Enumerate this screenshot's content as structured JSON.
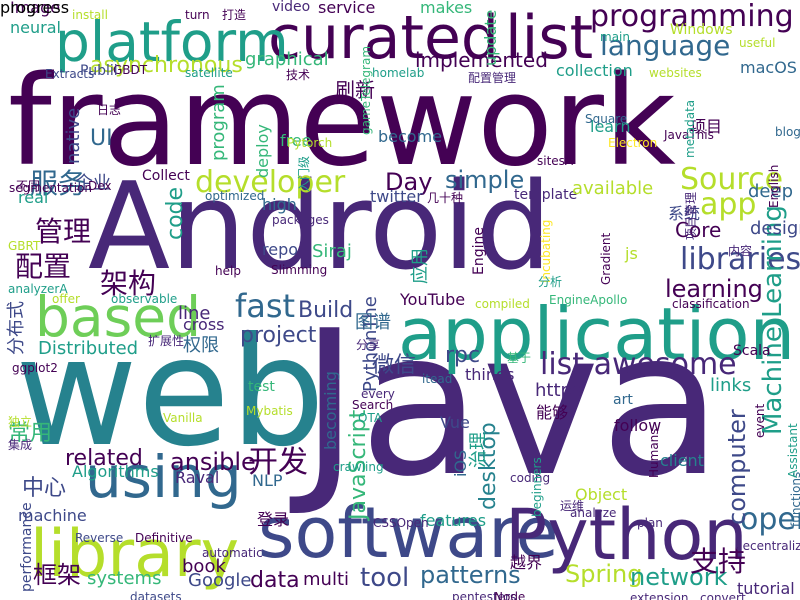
{
  "palette": {
    "dark_purple": "#440154",
    "indigo": "#482878",
    "blue_purple": "#3e4989",
    "steel_blue": "#31688e",
    "teal": "#26828e",
    "sea_green": "#1f9e89",
    "green": "#35b779",
    "light_green": "#6ece58",
    "lime": "#b5de2b",
    "yellow": "#fde725"
  },
  "words": [
    {
      "text": "framework",
      "color": "dark_purple",
      "vertical": false
    },
    {
      "text": "Android",
      "color": "indigo",
      "vertical": false
    },
    {
      "text": "Java",
      "color": "indigo",
      "vertical": false
    },
    {
      "text": "web",
      "color": "teal",
      "vertical": false
    },
    {
      "text": "application",
      "color": "sea_green",
      "vertical": false
    },
    {
      "text": "software",
      "color": "blue_purple",
      "vertical": false
    },
    {
      "text": "Python",
      "color": "indigo",
      "vertical": false
    },
    {
      "text": "curated",
      "color": "dark_purple",
      "vertical": false
    },
    {
      "text": "list",
      "color": "dark_purple",
      "vertical": false
    },
    {
      "text": "platform",
      "color": "sea_green",
      "vertical": false
    },
    {
      "text": "library",
      "color": "lime",
      "vertical": false
    },
    {
      "text": "using",
      "color": "steel_blue",
      "vertical": false
    },
    {
      "text": "based",
      "color": "light_green",
      "vertical": false
    },
    {
      "text": "programming",
      "color": "dark_purple",
      "vertical": false
    },
    {
      "text": "language",
      "color": "steel_blue",
      "vertical": false
    },
    {
      "text": "asynchronous",
      "color": "lime",
      "vertical": false
    },
    {
      "text": "libraries",
      "color": "blue_purple",
      "vertical": false
    },
    {
      "text": "Source",
      "color": "lime",
      "vertical": false
    },
    {
      "text": "app",
      "color": "lime",
      "vertical": false
    },
    {
      "text": "fast",
      "color": "steel_blue",
      "vertical": false
    },
    {
      "text": "developer",
      "color": "lime",
      "vertical": false
    },
    {
      "text": "list awesome",
      "color": "indigo",
      "vertical": false
    },
    {
      "text": "open",
      "color": "steel_blue",
      "vertical": false
    },
    {
      "text": "Machine Learning",
      "color": "sea_green",
      "vertical": true
    },
    {
      "text": "tool",
      "color": "blue_purple",
      "vertical": false
    },
    {
      "text": "project",
      "color": "blue_purple",
      "vertical": false
    },
    {
      "text": "implemented",
      "color": "dark_purple",
      "vertical": false
    },
    {
      "text": "simple",
      "color": "steel_blue",
      "vertical": false
    },
    {
      "text": "learning",
      "color": "dark_purple",
      "vertical": false
    },
    {
      "text": "Build",
      "color": "blue_purple",
      "vertical": false
    },
    {
      "text": "Day",
      "color": "dark_purple",
      "vertical": false
    },
    {
      "text": "JavaScript",
      "color": "green",
      "vertical": true
    },
    {
      "text": "desktop",
      "color": "teal",
      "vertical": true
    },
    {
      "text": "computer",
      "color": "blue_purple",
      "vertical": true
    },
    {
      "text": "Spring",
      "color": "lime",
      "vertical": false
    },
    {
      "text": "network",
      "color": "sea_green",
      "vertical": false
    },
    {
      "text": "patterns",
      "color": "steel_blue",
      "vertical": false
    },
    {
      "text": "data",
      "color": "dark_purple",
      "vertical": false
    },
    {
      "text": "related",
      "color": "dark_purple",
      "vertical": false
    },
    {
      "text": "ansible",
      "color": "dark_purple",
      "vertical": false
    },
    {
      "text": "开发",
      "color": "dark_purple",
      "vertical": false
    },
    {
      "text": "支持",
      "color": "dark_purple",
      "vertical": false
    },
    {
      "text": "服务",
      "color": "steel_blue",
      "vertical": false
    },
    {
      "text": "管理",
      "color": "dark_purple",
      "vertical": false
    },
    {
      "text": "配置",
      "color": "dark_purple",
      "vertical": false
    },
    {
      "text": "架构",
      "color": "dark_purple",
      "vertical": false
    },
    {
      "text": "框架",
      "color": "dark_purple",
      "vertical": false
    },
    {
      "text": "中心",
      "color": "blue_purple",
      "vertical": false
    },
    {
      "text": "常用",
      "color": "green",
      "vertical": false
    },
    {
      "text": "微信",
      "color": "blue_purple",
      "vertical": false
    },
    {
      "text": "UI",
      "color": "steel_blue",
      "vertical": false
    },
    {
      "text": "code",
      "color": "sea_green",
      "vertical": true
    },
    {
      "text": "Core",
      "color": "dark_purple",
      "vertical": false
    },
    {
      "text": "design",
      "color": "blue_purple",
      "vertical": false
    },
    {
      "text": "deep",
      "color": "steel_blue",
      "vertical": false
    },
    {
      "text": "Distributed",
      "color": "sea_green",
      "vertical": false
    },
    {
      "text": "YouTube",
      "color": "dark_purple",
      "vertical": false
    },
    {
      "text": "rpc",
      "color": "blue_purple",
      "vertical": false
    },
    {
      "text": "https",
      "color": "indigo",
      "vertical": false
    },
    {
      "text": "links",
      "color": "sea_green",
      "vertical": false
    },
    {
      "text": "Vue",
      "color": "blue_purple",
      "vertical": false
    },
    {
      "text": "Google",
      "color": "blue_purple",
      "vertical": false
    },
    {
      "text": "book",
      "color": "dark_purple",
      "vertical": false
    },
    {
      "text": "multi",
      "color": "dark_purple",
      "vertical": false
    },
    {
      "text": "systems",
      "color": "green",
      "vertical": false
    },
    {
      "text": "Algorithms",
      "color": "sea_green",
      "vertical": false
    },
    {
      "text": "Raval",
      "color": "indigo",
      "vertical": false
    },
    {
      "text": "Siraj",
      "color": "green",
      "vertical": false
    },
    {
      "text": "things",
      "color": "indigo",
      "vertical": false
    },
    {
      "text": "repo",
      "color": "blue_purple",
      "vertical": false
    },
    {
      "text": "line",
      "color": "indigo",
      "vertical": false
    },
    {
      "text": "cross",
      "color": "indigo",
      "vertical": false
    },
    {
      "text": "service",
      "color": "dark_purple",
      "vertical": false
    },
    {
      "text": "makes",
      "color": "green",
      "vertical": false
    },
    {
      "text": "update",
      "color": "green",
      "vertical": true
    },
    {
      "text": "Windows",
      "color": "lime",
      "vertical": false
    },
    {
      "text": "macOS",
      "color": "steel_blue",
      "vertical": false
    },
    {
      "text": "collection",
      "color": "sea_green",
      "vertical": false
    },
    {
      "text": "graphical",
      "color": "green",
      "vertical": false
    },
    {
      "text": "刷新",
      "color": "dark_purple",
      "vertical": false
    },
    {
      "text": "Image",
      "color": "dark_purple",
      "vertical": false
    },
    {
      "text": "neural",
      "color": "sea_green",
      "vertical": false
    },
    {
      "text": "video",
      "color": "indigo",
      "vertical": false
    },
    {
      "text": "tutorial",
      "color": "indigo",
      "vertical": false
    },
    {
      "text": "template",
      "color": "indigo",
      "vertical": false
    },
    {
      "text": "Engine",
      "color": "dark_purple",
      "vertical": true
    },
    {
      "text": "PythonThe",
      "color": "blue_purple",
      "vertical": true
    },
    {
      "text": "应用",
      "color": "sea_green",
      "vertical": true
    },
    {
      "text": "图谱",
      "color": "steel_blue",
      "vertical": false
    },
    {
      "text": "能够",
      "color": "dark_purple",
      "vertical": false
    },
    {
      "text": "系统",
      "color": "blue_purple",
      "vertical": false
    },
    {
      "text": "项目",
      "color": "dark_purple",
      "vertical": false
    },
    {
      "text": "企业",
      "color": "blue_purple",
      "vertical": false
    },
    {
      "text": "权限",
      "color": "steel_blue",
      "vertical": false
    },
    {
      "text": "分布式",
      "color": "blue_purple",
      "vertical": true
    },
    {
      "text": "治理",
      "color": "sea_green",
      "vertical": true
    },
    {
      "text": "越界",
      "color": "dark_purple",
      "vertical": false
    },
    {
      "text": "js",
      "color": "lime",
      "vertical": false
    },
    {
      "text": "NLP",
      "color": "steel_blue",
      "vertical": false
    },
    {
      "text": "iOS",
      "color": "steel_blue",
      "vertical": true
    },
    {
      "text": "Object",
      "color": "lime",
      "vertical": false
    },
    {
      "text": "client",
      "color": "teal",
      "vertical": false
    },
    {
      "text": "deploy",
      "color": "green",
      "vertical": true
    },
    {
      "text": "free",
      "color": "green",
      "vertical": false
    },
    {
      "text": "program",
      "color": "green",
      "vertical": true
    },
    {
      "text": "native",
      "color": "blue_purple",
      "vertical": true
    },
    {
      "text": "learn",
      "color": "sea_green",
      "vertical": false
    },
    {
      "text": "become",
      "color": "steel_blue",
      "vertical": false
    },
    {
      "text": "available",
      "color": "lime",
      "vertical": false
    },
    {
      "text": "high",
      "color": "steel_blue",
      "vertical": false
    },
    {
      "text": "twitter",
      "color": "blue_purple",
      "vertical": false
    },
    {
      "text": "real",
      "color": "sea_green",
      "vertical": false
    },
    {
      "text": "machine",
      "color": "blue_purple",
      "vertical": false
    },
    {
      "text": "performance",
      "color": "blue_purple",
      "vertical": true
    },
    {
      "text": "features",
      "color": "sea_green",
      "vertical": false
    },
    {
      "text": "follow",
      "color": "dark_purple",
      "vertical": false
    },
    {
      "text": "art",
      "color": "steel_blue",
      "vertical": false
    },
    {
      "text": "becoming",
      "color": "steel_blue",
      "vertical": true
    },
    {
      "text": "test",
      "color": "green",
      "vertical": false
    },
    {
      "text": "登录",
      "color": "dark_purple",
      "vertical": false
    },
    {
      "text": "Collect",
      "color": "dark_purple",
      "vertical": false
    },
    {
      "text": "扩展性",
      "color": "indigo",
      "vertical": false
    },
    {
      "text": "基于",
      "color": "green",
      "vertical": false
    },
    {
      "text": "Scala",
      "color": "dark_purple",
      "vertical": false
    },
    {
      "text": "functions",
      "color": "steel_blue",
      "vertical": true
    },
    {
      "text": "computing",
      "color": "blue_purple",
      "vertical": true
    },
    {
      "text": "classification",
      "color": "dark_purple",
      "vertical": false
    },
    {
      "text": "EngineApollo",
      "color": "green",
      "vertical": false
    },
    {
      "text": "compiled",
      "color": "lime",
      "vertical": false
    },
    {
      "text": "observable",
      "color": "sea_green",
      "vertical": false
    },
    {
      "text": "offer",
      "color": "lime",
      "vertical": false
    },
    {
      "text": "analyzerA",
      "color": "sea_green",
      "vertical": false
    },
    {
      "text": "GBRT",
      "color": "lime",
      "vertical": false
    },
    {
      "text": "segmentation",
      "color": "dark_purple",
      "vertical": false
    },
    {
      "text": "Dex",
      "color": "dark_purple",
      "vertical": false
    },
    {
      "text": "GBDT",
      "color": "dark_purple",
      "vertical": false
    },
    {
      "text": "Publii",
      "color": "blue_purple",
      "vertical": false
    },
    {
      "text": "satellite",
      "color": "sea_green",
      "vertical": false
    },
    {
      "text": "技术",
      "color": "dark_purple",
      "vertical": false
    },
    {
      "text": "homelab",
      "color": "sea_green",
      "vertical": false
    },
    {
      "text": "配置管理",
      "color": "indigo",
      "vertical": false
    },
    {
      "text": "websites",
      "color": "lime",
      "vertical": false
    },
    {
      "text": "Square",
      "color": "steel_blue",
      "vertical": false
    },
    {
      "text": "Electron",
      "color": "yellow",
      "vertical": false
    },
    {
      "text": "JavaThis",
      "color": "dark_purple",
      "vertical": false
    },
    {
      "text": "metadata",
      "color": "sea_green",
      "vertical": true
    },
    {
      "text": "sitesA",
      "color": "dark_purple",
      "vertical": false
    },
    {
      "text": "useful",
      "color": "lime",
      "vertical": false
    },
    {
      "text": "main",
      "color": "sea_green",
      "vertical": false
    },
    {
      "text": "blog",
      "color": "steel_blue",
      "vertical": false
    },
    {
      "text": "Extracts",
      "color": "blue_purple",
      "vertical": false
    },
    {
      "text": "日志",
      "color": "dark_purple",
      "vertical": false
    },
    {
      "text": "不同",
      "color": "dark_purple",
      "vertical": false
    },
    {
      "text": "Pytorch",
      "color": "lime",
      "vertical": false
    },
    {
      "text": "gameTelegram",
      "color": "green",
      "vertical": true
    },
    {
      "text": "几十种",
      "color": "dark_purple",
      "vertical": false
    },
    {
      "text": "入门级",
      "color": "sea_green",
      "vertical": true
    },
    {
      "text": "optimized",
      "color": "steel_blue",
      "vertical": false
    },
    {
      "text": "packages",
      "color": "indigo",
      "vertical": false
    },
    {
      "text": "Slimming",
      "color": "dark_purple",
      "vertical": false
    },
    {
      "text": "help",
      "color": "dark_purple",
      "vertical": false
    },
    {
      "text": "incubating",
      "color": "yellow",
      "vertical": true
    },
    {
      "text": "分析",
      "color": "sea_green",
      "vertical": false
    },
    {
      "text": "Gradient",
      "color": "dark_purple",
      "vertical": true
    },
    {
      "text": "项目管理",
      "color": "indigo",
      "vertical": true
    },
    {
      "text": "English",
      "color": "dark_purple",
      "vertical": true
    },
    {
      "text": "内容",
      "color": "indigo",
      "vertical": false
    },
    {
      "text": "分享",
      "color": "indigo",
      "vertical": false
    },
    {
      "text": "ggplot2",
      "color": "dark_purple",
      "vertical": false
    },
    {
      "text": "独立",
      "color": "lime",
      "vertical": false
    },
    {
      "text": "集成",
      "color": "indigo",
      "vertical": false
    },
    {
      "text": "every",
      "color": "indigo",
      "vertical": false
    },
    {
      "text": "itead",
      "color": "steel_blue",
      "vertical": false
    },
    {
      "text": "Search",
      "color": "dark_purple",
      "vertical": false
    },
    {
      "text": "Mybatis",
      "color": "lime",
      "vertical": false
    },
    {
      "text": "OTA",
      "color": "sea_green",
      "vertical": false
    },
    {
      "text": "Vanilla",
      "color": "lime",
      "vertical": false
    },
    {
      "text": "crawling",
      "color": "sea_green",
      "vertical": false
    },
    {
      "text": "event",
      "color": "dark_purple",
      "vertical": true
    },
    {
      "text": "Assistant",
      "color": "sea_green",
      "vertical": true
    },
    {
      "text": "Humans",
      "color": "dark_purple",
      "vertical": true
    },
    {
      "text": "coding",
      "color": "indigo",
      "vertical": false
    },
    {
      "text": "运维",
      "color": "indigo",
      "vertical": false
    },
    {
      "text": "beginners",
      "color": "sea_green",
      "vertical": true
    },
    {
      "text": "analyze",
      "color": "indigo",
      "vertical": false
    },
    {
      "text": "plan",
      "color": "indigo",
      "vertical": false
    },
    {
      "text": "decentralizing",
      "color": "indigo",
      "vertical": false
    },
    {
      "text": "CSSOpen",
      "color": "indigo",
      "vertical": false
    },
    {
      "text": "Reverse",
      "color": "blue_purple",
      "vertical": false
    },
    {
      "text": "Definitive",
      "color": "dark_purple",
      "vertical": false
    },
    {
      "text": "automatic",
      "color": "indigo",
      "vertical": false
    },
    {
      "text": "datasets",
      "color": "blue_purple",
      "vertical": false
    },
    {
      "text": "pentesters",
      "color": "indigo",
      "vertical": false
    },
    {
      "text": "Node",
      "color": "dark_purple",
      "vertical": false
    },
    {
      "text": "extension",
      "color": "indigo",
      "vertical": false
    },
    {
      "text": "convert",
      "color": "indigo",
      "vertical": false
    },
    {
      "text": "install",
      "color": "lime",
      "vertical": false
    },
    {
      "text": "turn",
      "color": "dark_purple",
      "vertical": false
    },
    {
      "text": "打造",
      "color": "dark_purple",
      "vertical": false
    },
    {
      "text": "progress",
      "color": "dark_purple",
      "vertical": false
    }
  ]
}
